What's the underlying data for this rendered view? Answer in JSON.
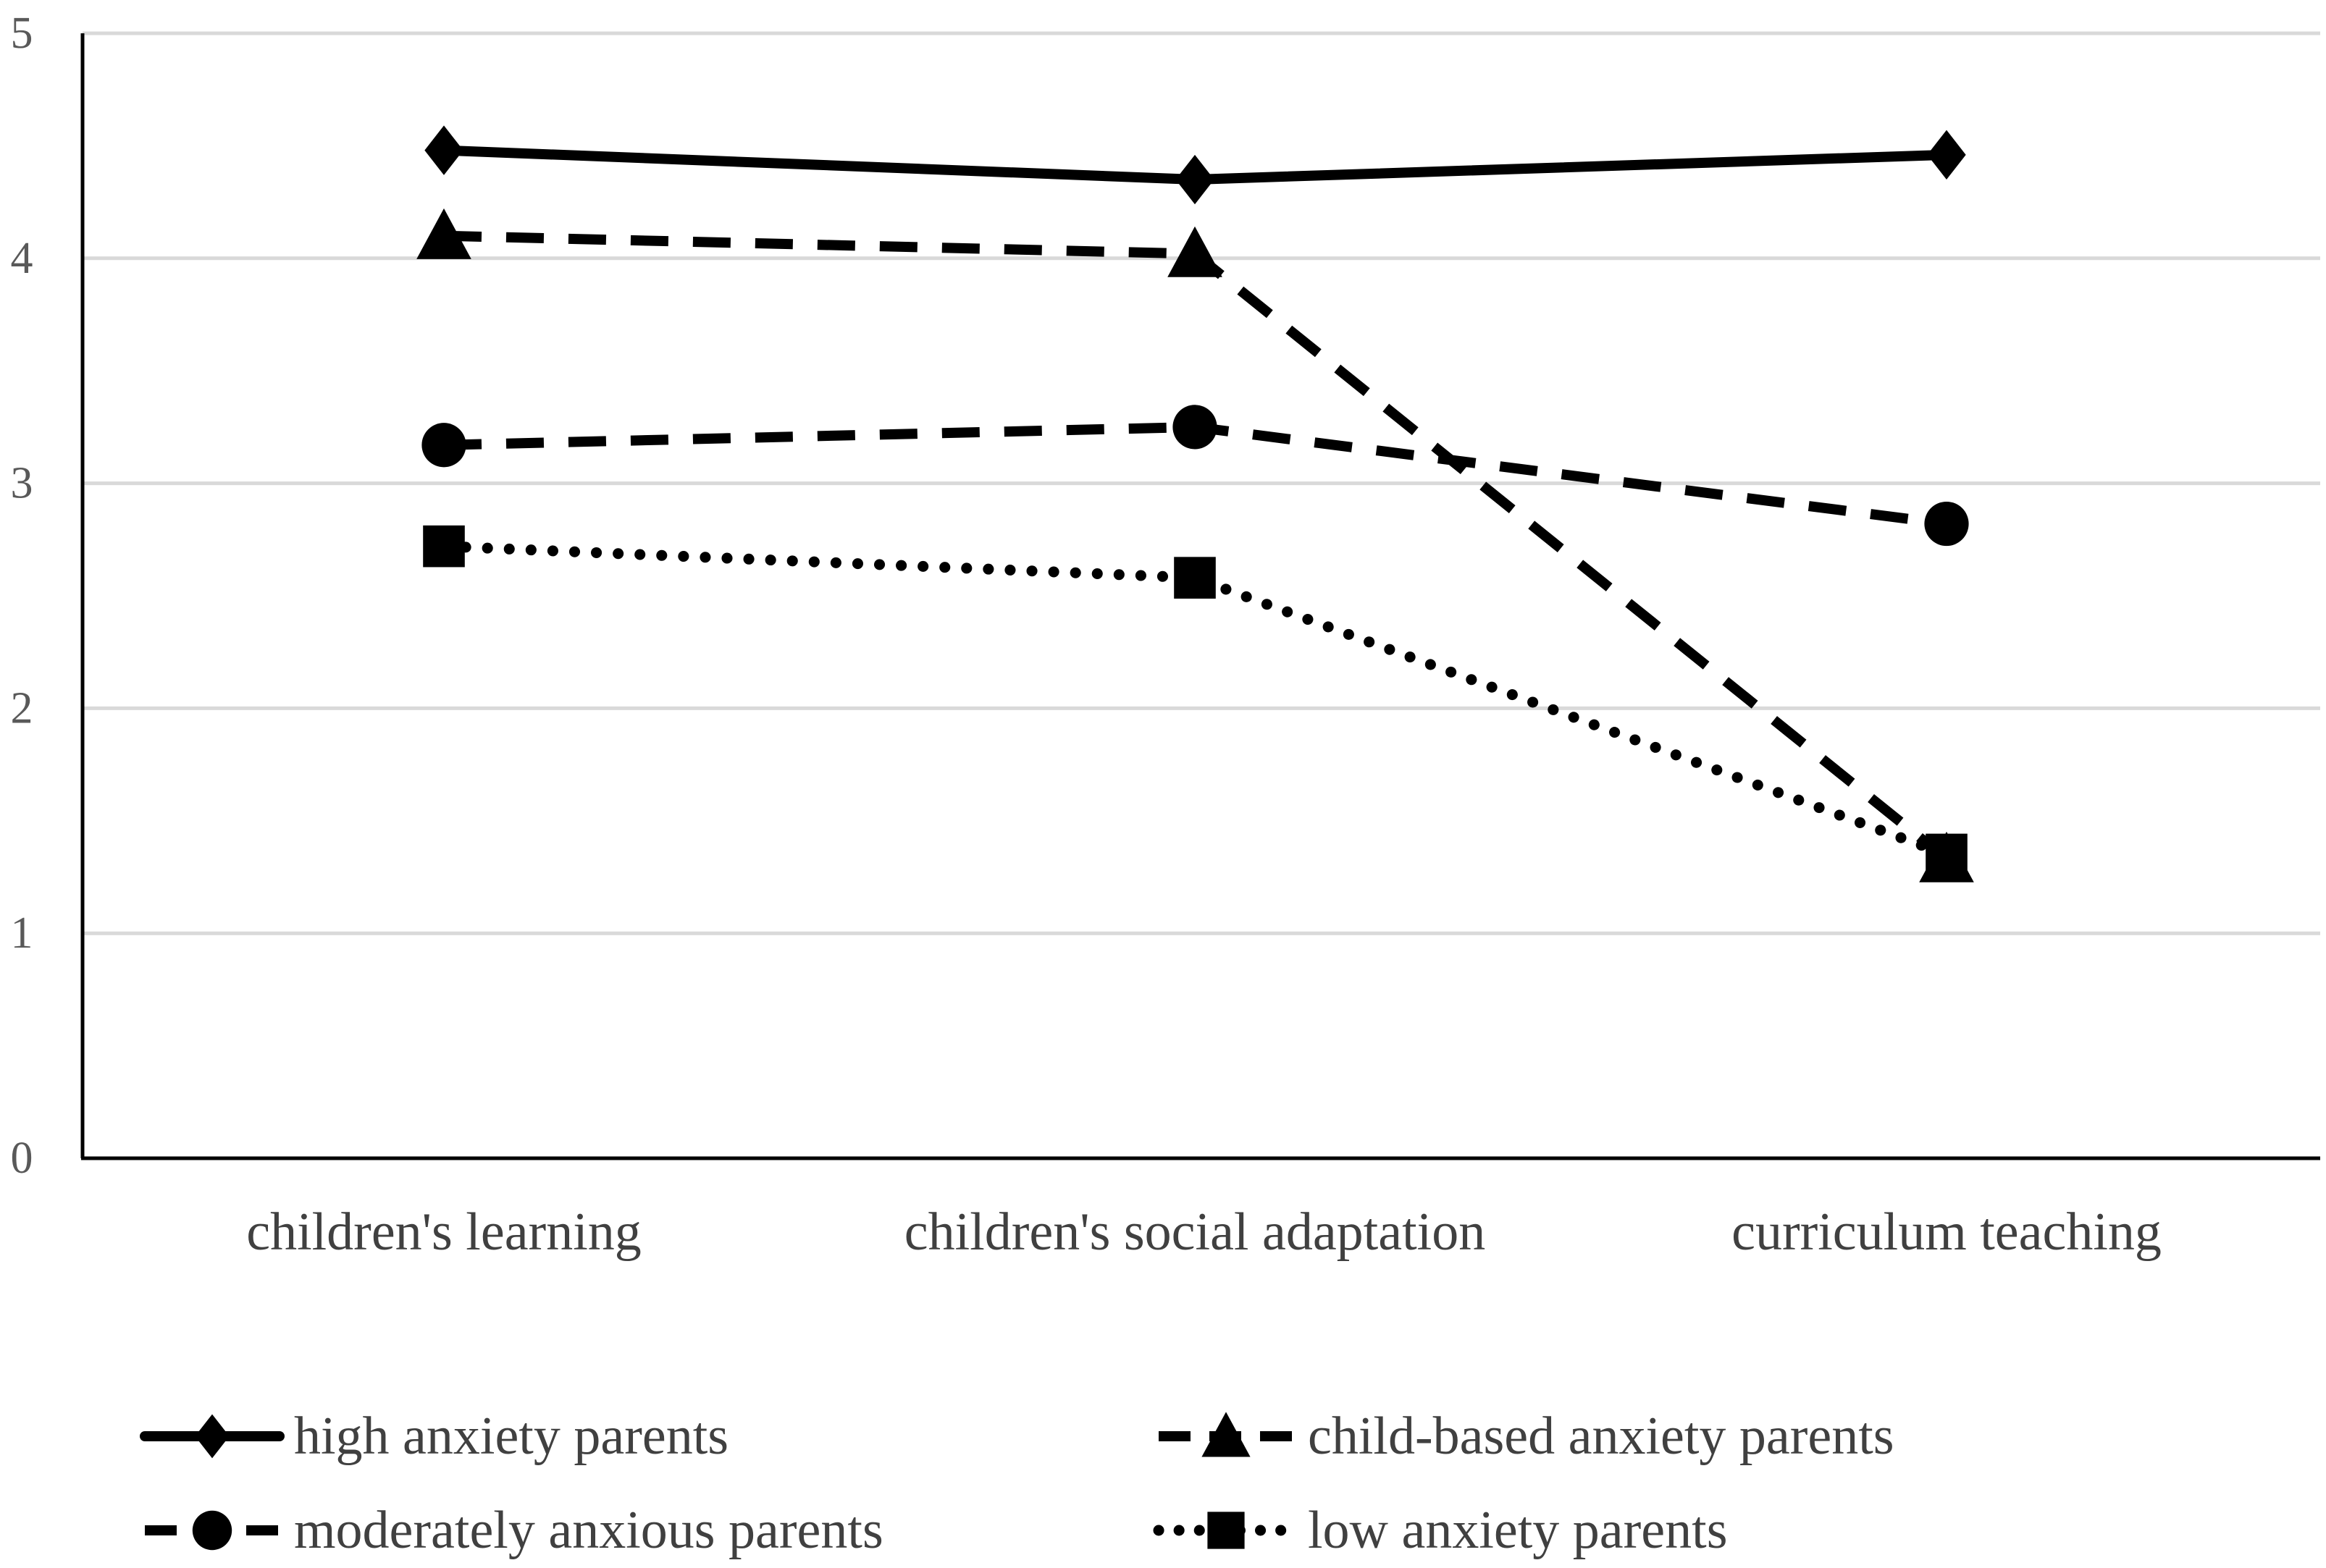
{
  "chart_data": {
    "type": "line",
    "title": "",
    "xlabel": "",
    "ylabel": "",
    "ylim": [
      0,
      5
    ],
    "yticks": [
      0,
      1,
      2,
      3,
      4,
      5
    ],
    "grid": true,
    "legend_position": "bottom",
    "categories": [
      "children's learning",
      "children's social adaptation",
      "curriculum teaching"
    ],
    "series": [
      {
        "name": "high anxiety parents",
        "values": [
          4.48,
          4.35,
          4.46
        ],
        "marker": "diamond",
        "line_style": "solid",
        "color": "#000000"
      },
      {
        "name": "child-based anxiety parents",
        "values": [
          4.1,
          4.02,
          1.33
        ],
        "marker": "triangle",
        "line_style": "dash",
        "color": "#000000"
      },
      {
        "name": "moderately anxious parents",
        "values": [
          3.17,
          3.25,
          2.82
        ],
        "marker": "circle",
        "line_style": "dash",
        "color": "#000000"
      },
      {
        "name": "low anxiety parents",
        "values": [
          2.72,
          2.58,
          1.35
        ],
        "marker": "square",
        "line_style": "dot",
        "color": "#000000"
      }
    ]
  }
}
